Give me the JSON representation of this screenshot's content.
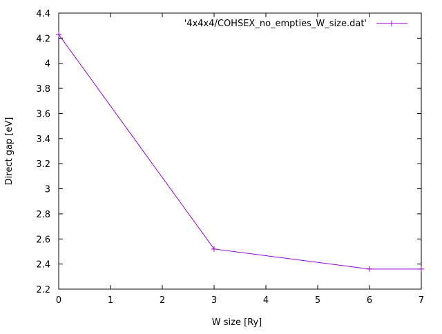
{
  "chart_data": {
    "type": "line",
    "xlabel": "W size [Ry]",
    "ylabel": "Direct gap [eV]",
    "xlim": [
      0,
      7
    ],
    "ylim": [
      2.2,
      4.4
    ],
    "x_ticks": [
      "0",
      "1",
      "2",
      "3",
      "4",
      "5",
      "6",
      "7"
    ],
    "y_ticks": [
      "2.2",
      "2.4",
      "2.6",
      "2.8",
      "3",
      "3.2",
      "3.4",
      "3.6",
      "3.8",
      "4",
      "4.2",
      "4.4"
    ],
    "grid": false,
    "legend_position": "top-right",
    "series": [
      {
        "name": "'4x4x4/COHSEX_no_empties_W_size.dat'",
        "color": "#9400d3",
        "marker": "plus",
        "x": [
          0,
          3,
          6,
          7
        ],
        "y": [
          4.23,
          2.52,
          2.36,
          2.36
        ]
      }
    ]
  }
}
